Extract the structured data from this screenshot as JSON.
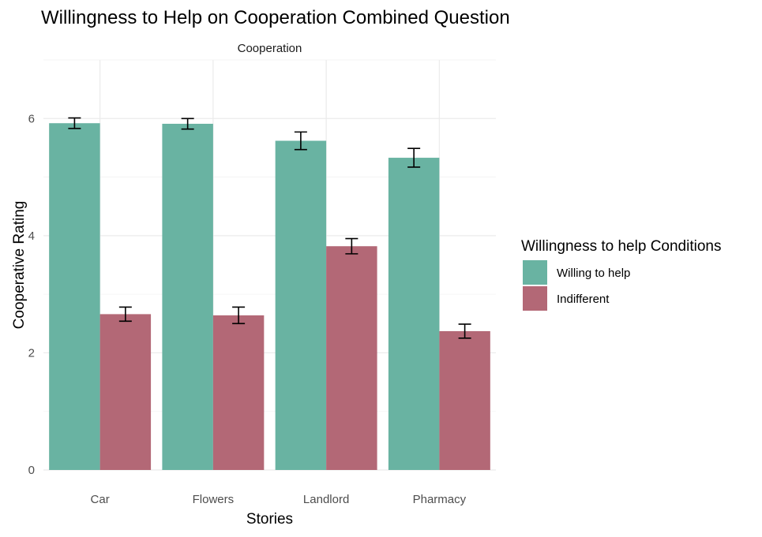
{
  "chart_data": {
    "type": "bar",
    "title": "Willingness to Help on Cooperation Combined Question",
    "facet": "Cooperation",
    "xlabel": "Stories",
    "ylabel": "Cooperative Rating",
    "categories": [
      "Car",
      "Flowers",
      "Landlord",
      "Pharmacy"
    ],
    "ylim": [
      0,
      7
    ],
    "yticks": [
      0,
      2,
      4,
      6
    ],
    "grid": true,
    "legend": {
      "title": "Willingness to help Conditions",
      "position": "right"
    },
    "series": [
      {
        "name": "Willing to help",
        "color": "#69b3a2",
        "values": [
          5.92,
          5.91,
          5.62,
          5.33
        ],
        "error_low": [
          5.83,
          5.82,
          5.47,
          5.17
        ],
        "error_high": [
          6.01,
          6.0,
          5.77,
          5.49
        ]
      },
      {
        "name": "Indifferent",
        "color": "#b36876",
        "values": [
          2.66,
          2.64,
          3.82,
          2.37
        ],
        "error_low": [
          2.54,
          2.5,
          3.69,
          2.25
        ],
        "error_high": [
          2.78,
          2.78,
          3.95,
          2.49
        ]
      }
    ]
  }
}
